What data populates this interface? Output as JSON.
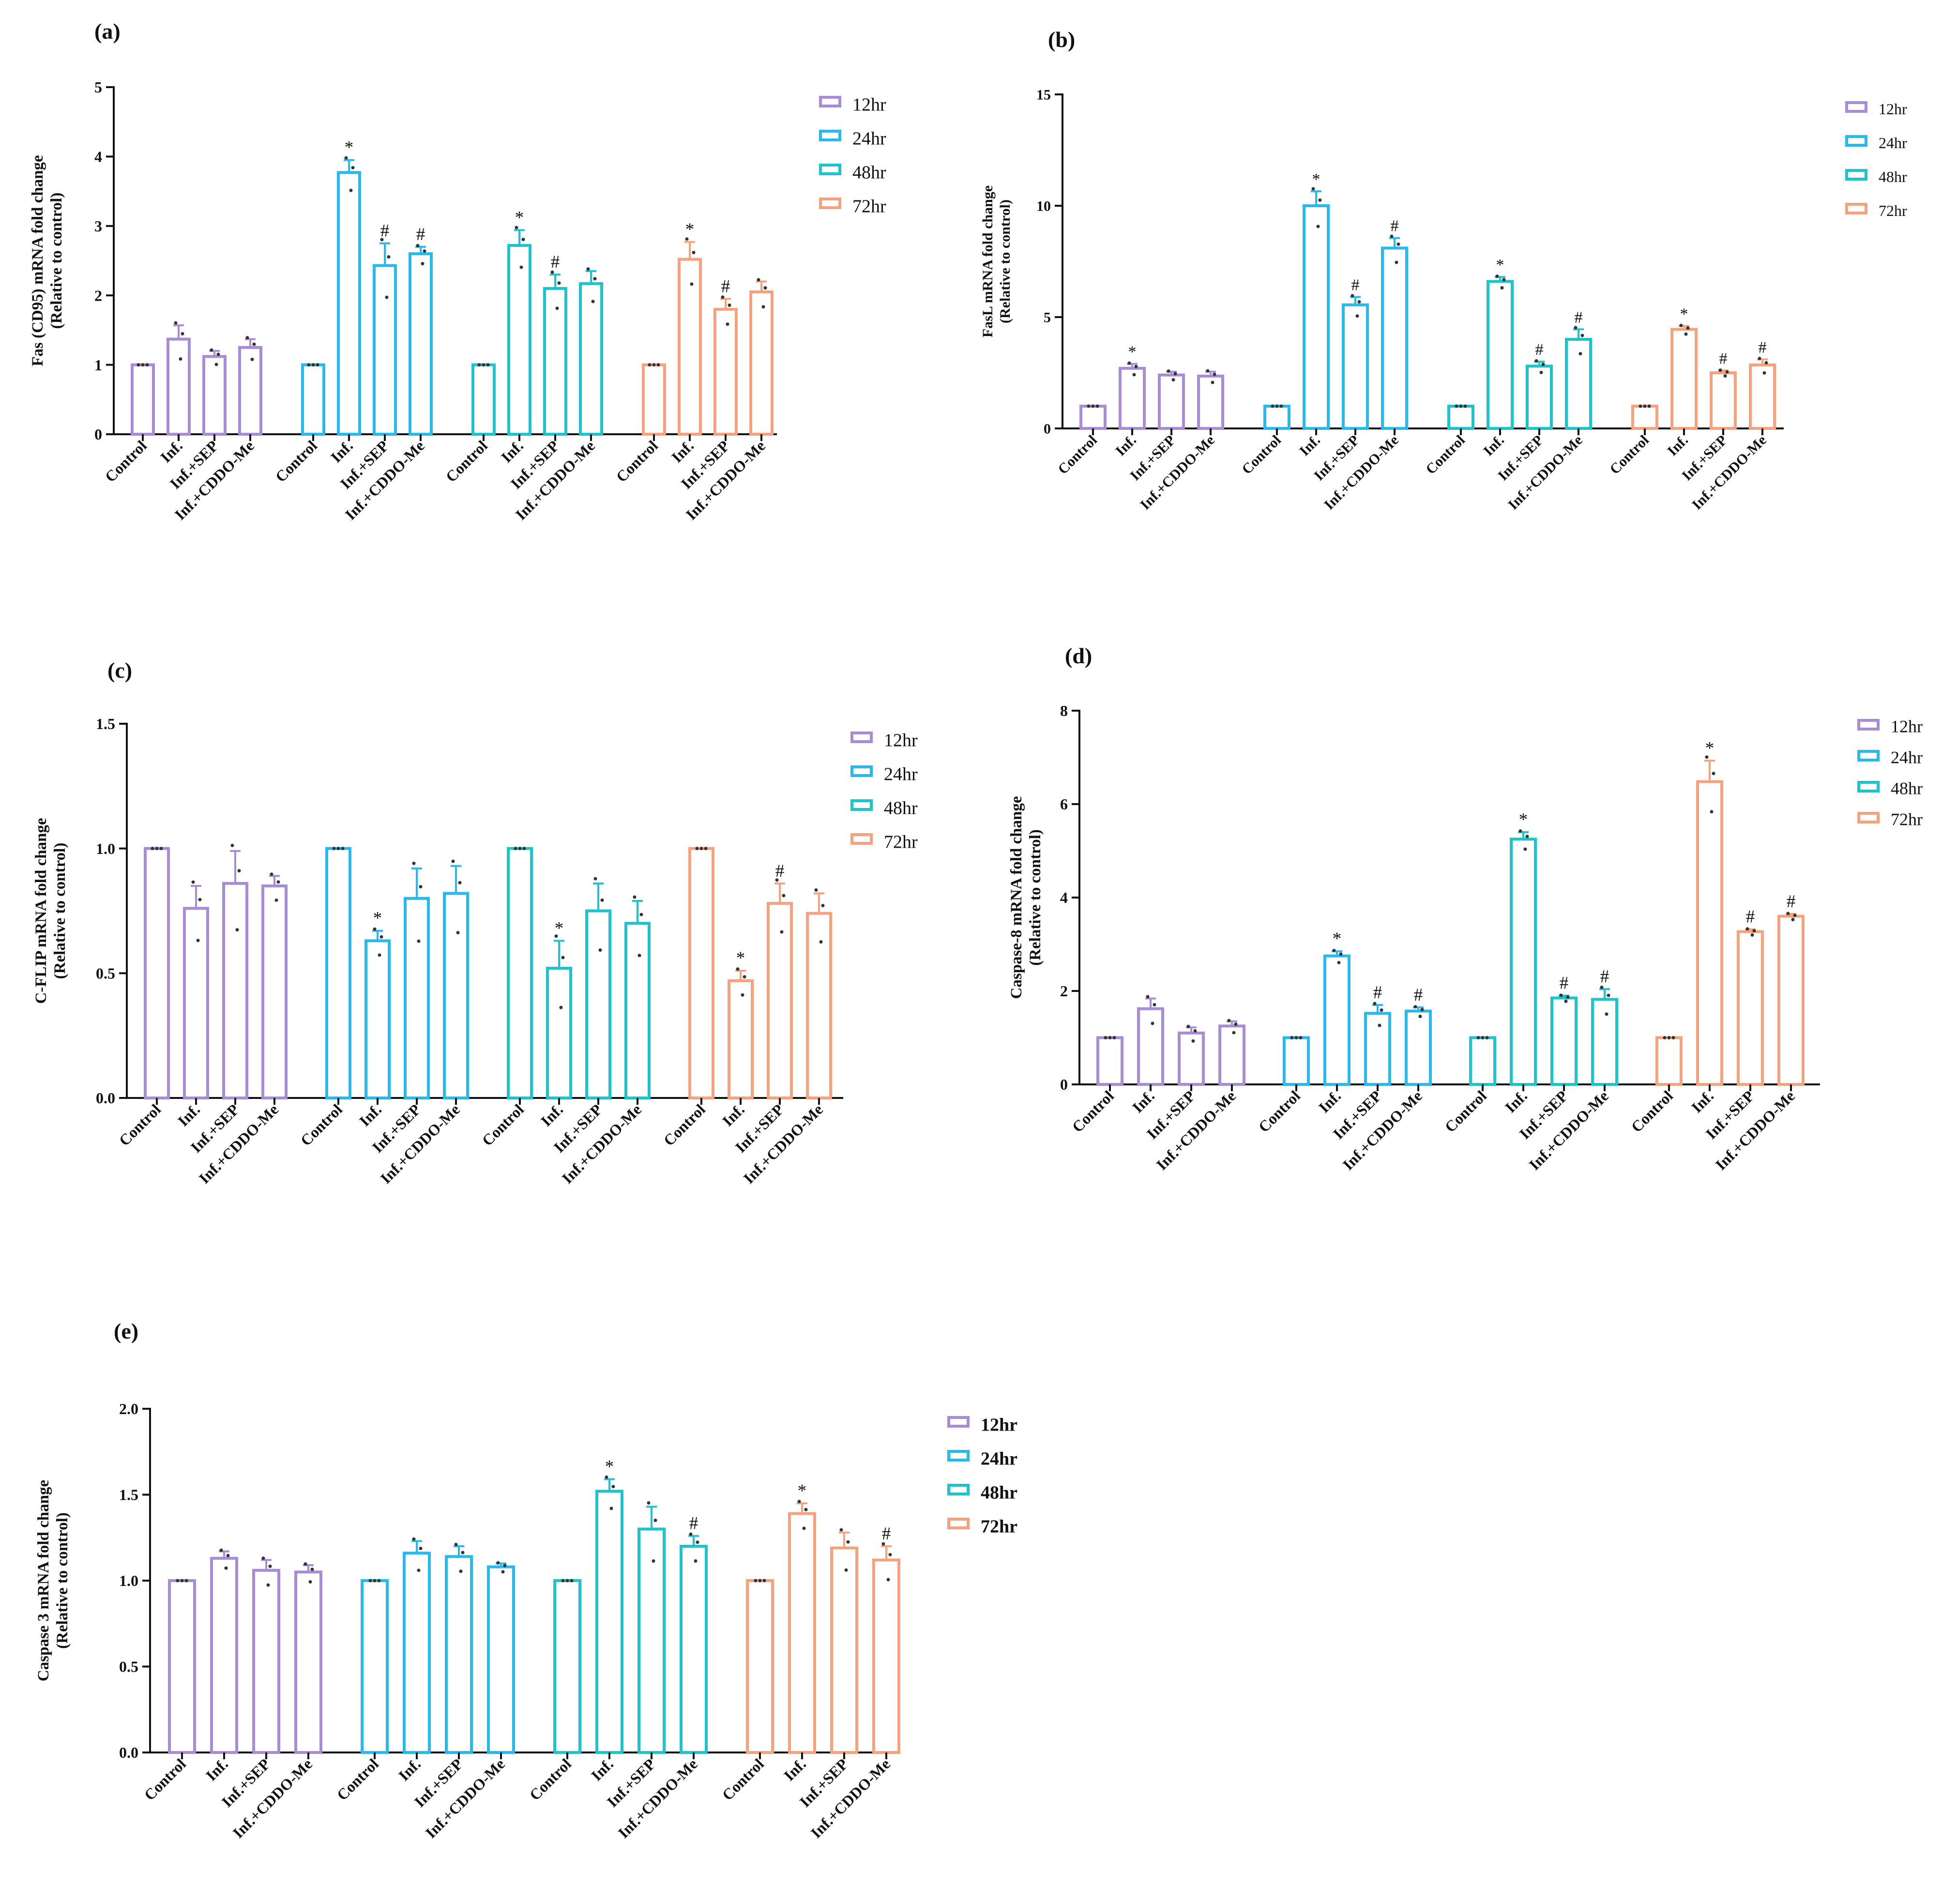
{
  "groups": [
    "12hr",
    "24hr",
    "48hr",
    "72hr"
  ],
  "conditions": [
    "Control",
    "Inf.",
    "Inf.+SEP",
    "Inf.+CDDO-Me"
  ],
  "colors": {
    "12hr": "#a98cd6",
    "24hr": "#29b9ee",
    "48hr": "#1fc3cc",
    "72hr": "#f6a27f"
  },
  "chart_data": [
    {
      "panel_label": "(a)",
      "type": "bar",
      "ylabel_line1": "Fas (CD95) mRNA fold change",
      "ylabel_line2": "(Relative to control)",
      "ylim": [
        0,
        5
      ],
      "yticks": [
        "0",
        "1",
        "2",
        "3",
        "4",
        "5"
      ],
      "legend_placement": "right",
      "series": [
        {
          "name": "12hr",
          "values": [
            1.0,
            1.37,
            1.12,
            1.25
          ],
          "errors": [
            0,
            0.2,
            0.08,
            0.12
          ],
          "marks": [
            "",
            "",
            "",
            ""
          ]
        },
        {
          "name": "24hr",
          "values": [
            1.0,
            3.77,
            2.43,
            2.6
          ],
          "errors": [
            0,
            0.18,
            0.32,
            0.1
          ],
          "marks": [
            "",
            "*",
            "#",
            "#"
          ]
        },
        {
          "name": "48hr",
          "values": [
            1.0,
            2.72,
            2.1,
            2.17
          ],
          "errors": [
            0,
            0.22,
            0.2,
            0.18
          ],
          "marks": [
            "",
            "*",
            "#",
            ""
          ]
        },
        {
          "name": "72hr",
          "values": [
            1.0,
            2.52,
            1.8,
            2.05
          ],
          "errors": [
            0,
            0.25,
            0.15,
            0.15
          ],
          "marks": [
            "",
            "*",
            "#",
            ""
          ]
        }
      ]
    },
    {
      "panel_label": "(b)",
      "type": "bar",
      "ylabel_line1": "FasL mRNA fold change",
      "ylabel_line2": "(Relative to control)",
      "ylim": [
        0,
        15
      ],
      "yticks": [
        "0",
        "5",
        "10",
        "15"
      ],
      "legend_placement": "right",
      "series": [
        {
          "name": "12hr",
          "values": [
            1.0,
            2.7,
            2.4,
            2.35
          ],
          "errors": [
            0,
            0.2,
            0.15,
            0.2
          ],
          "marks": [
            "",
            "*",
            "",
            ""
          ]
        },
        {
          "name": "24hr",
          "values": [
            1.0,
            10.0,
            5.55,
            8.1
          ],
          "errors": [
            0,
            0.65,
            0.35,
            0.45
          ],
          "marks": [
            "",
            "*",
            "#",
            "#"
          ]
        },
        {
          "name": "48hr",
          "values": [
            1.0,
            6.6,
            2.8,
            4.0
          ],
          "errors": [
            0,
            0.2,
            0.2,
            0.45
          ],
          "marks": [
            "",
            "*",
            "#",
            "#"
          ]
        },
        {
          "name": "72hr",
          "values": [
            1.0,
            4.45,
            2.5,
            2.85
          ],
          "errors": [
            0,
            0.15,
            0.1,
            0.25
          ],
          "marks": [
            "",
            "*",
            "#",
            "#"
          ]
        }
      ]
    },
    {
      "panel_label": "(c)",
      "type": "bar",
      "ylabel_line1": "C-FLIP mRNA fold change",
      "ylabel_line2": "(Relative to control)",
      "ylim": [
        0,
        1.5
      ],
      "yticks": [
        "0.0",
        "0.5",
        "1.0",
        "1.5"
      ],
      "legend_placement": "right",
      "series": [
        {
          "name": "12hr",
          "values": [
            1.0,
            0.76,
            0.86,
            0.85
          ],
          "errors": [
            0,
            0.09,
            0.13,
            0.04
          ],
          "marks": [
            "",
            "",
            "",
            ""
          ]
        },
        {
          "name": "24hr",
          "values": [
            1.0,
            0.63,
            0.8,
            0.82
          ],
          "errors": [
            0,
            0.04,
            0.12,
            0.11
          ],
          "marks": [
            "",
            "*",
            "",
            ""
          ]
        },
        {
          "name": "48hr",
          "values": [
            1.0,
            0.52,
            0.75,
            0.7
          ],
          "errors": [
            0,
            0.11,
            0.11,
            0.09
          ],
          "marks": [
            "",
            "*",
            "",
            ""
          ]
        },
        {
          "name": "72hr",
          "values": [
            1.0,
            0.47,
            0.78,
            0.74
          ],
          "errors": [
            0,
            0.04,
            0.08,
            0.08
          ],
          "marks": [
            "",
            "*",
            "#",
            ""
          ]
        }
      ]
    },
    {
      "panel_label": "(d)",
      "type": "bar",
      "ylabel_line1": "Caspase-8 mRNA fold change",
      "ylabel_line2": "(Relative to control)",
      "ylim": [
        0,
        8
      ],
      "yticks": [
        "0",
        "2",
        "4",
        "6",
        "8"
      ],
      "legend_placement": "right",
      "series": [
        {
          "name": "12hr",
          "values": [
            1.0,
            1.62,
            1.1,
            1.25
          ],
          "errors": [
            0,
            0.22,
            0.12,
            0.1
          ],
          "marks": [
            "",
            "",
            "",
            ""
          ]
        },
        {
          "name": "24hr",
          "values": [
            1.0,
            2.75,
            1.52,
            1.57
          ],
          "errors": [
            0,
            0.1,
            0.18,
            0.08
          ],
          "marks": [
            "",
            "*",
            "#",
            "#"
          ]
        },
        {
          "name": "48hr",
          "values": [
            1.0,
            5.25,
            1.85,
            1.82
          ],
          "errors": [
            0,
            0.15,
            0.05,
            0.22
          ],
          "marks": [
            "",
            "*",
            "#",
            "#"
          ]
        },
        {
          "name": "72hr",
          "values": [
            1.0,
            6.48,
            3.27,
            3.6
          ],
          "errors": [
            0,
            0.45,
            0.05,
            0.05
          ],
          "marks": [
            "",
            "*",
            "#",
            "#"
          ]
        }
      ]
    },
    {
      "panel_label": "(e)",
      "type": "bar",
      "ylabel_line1": "Caspase 3 mRNA fold change",
      "ylabel_line2": "(Relative to control)",
      "ylim": [
        0,
        2
      ],
      "yticks": [
        "0.0",
        "0.5",
        "1.0",
        "1.5",
        "2.0"
      ],
      "legend_placement": "right",
      "series": [
        {
          "name": "12hr",
          "values": [
            1.0,
            1.13,
            1.06,
            1.05
          ],
          "errors": [
            0,
            0.04,
            0.06,
            0.04
          ],
          "marks": [
            "",
            "",
            "",
            ""
          ]
        },
        {
          "name": "24hr",
          "values": [
            1.0,
            1.16,
            1.14,
            1.08
          ],
          "errors": [
            0,
            0.07,
            0.06,
            0.02
          ],
          "marks": [
            "",
            "",
            "",
            ""
          ]
        },
        {
          "name": "48hr",
          "values": [
            1.0,
            1.52,
            1.3,
            1.2
          ],
          "errors": [
            0,
            0.07,
            0.13,
            0.06
          ],
          "marks": [
            "",
            "*",
            "",
            "#"
          ]
        },
        {
          "name": "72hr",
          "values": [
            1.0,
            1.39,
            1.19,
            1.12
          ],
          "errors": [
            0,
            0.06,
            0.09,
            0.08
          ],
          "marks": [
            "",
            "*",
            "",
            "#"
          ]
        }
      ]
    }
  ]
}
